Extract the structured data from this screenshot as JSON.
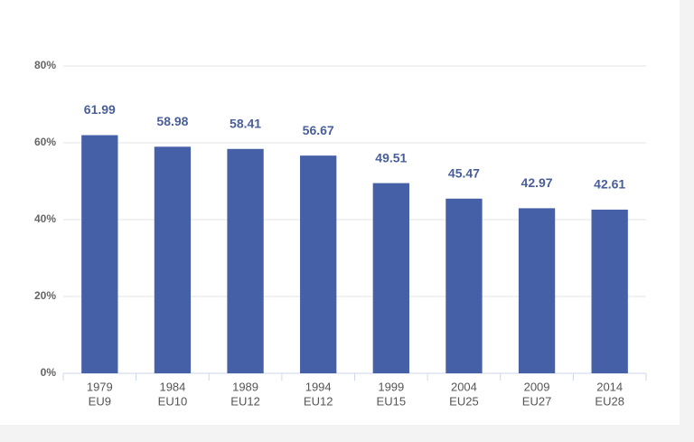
{
  "chart_data": {
    "type": "bar",
    "categories": [
      [
        "1979",
        "EU9"
      ],
      [
        "1984",
        "EU10"
      ],
      [
        "1989",
        "EU12"
      ],
      [
        "1994",
        "EU12"
      ],
      [
        "1999",
        "EU15"
      ],
      [
        "2004",
        "EU25"
      ],
      [
        "2009",
        "EU27"
      ],
      [
        "2014",
        "EU28"
      ]
    ],
    "values": [
      61.99,
      58.98,
      58.41,
      56.67,
      49.51,
      45.47,
      42.97,
      42.61
    ],
    "color": "#4560a7",
    "ylim": [
      0,
      80
    ],
    "yticks": [
      {
        "value": 0,
        "label": "0%"
      },
      {
        "value": 20,
        "label": "20%"
      },
      {
        "value": 40,
        "label": "40%"
      },
      {
        "value": 60,
        "label": "60%"
      },
      {
        "value": 80,
        "label": "80%"
      }
    ],
    "grid": true
  }
}
